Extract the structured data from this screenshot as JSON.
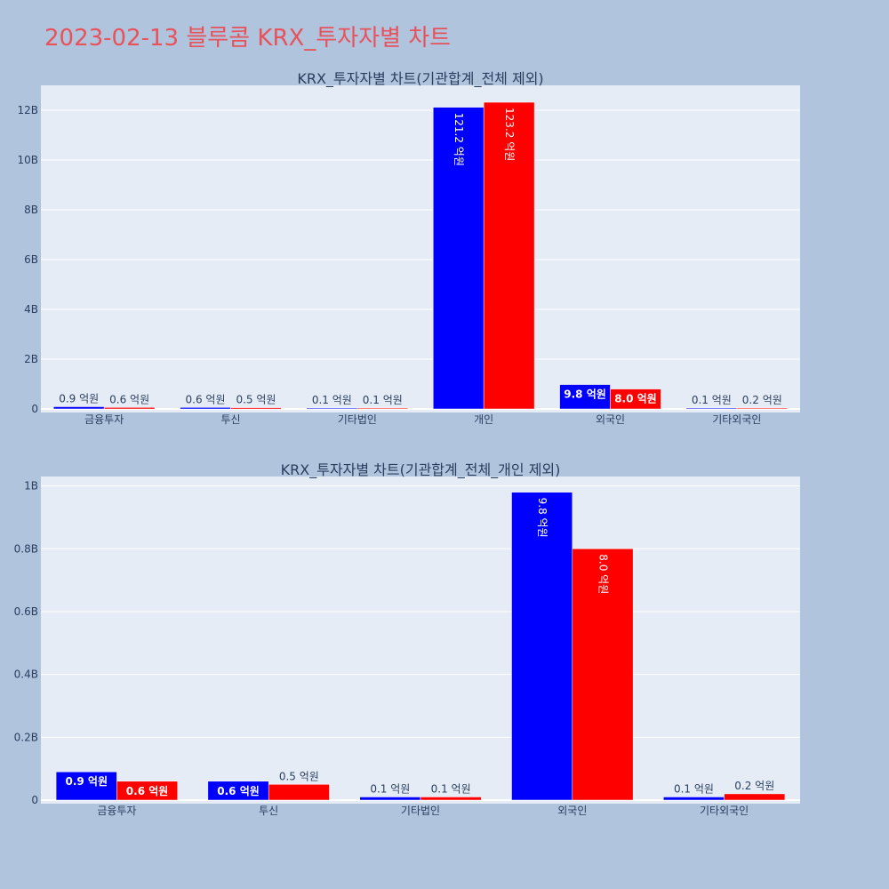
{
  "page_title": "2023-02-13 블루콤 KRX_투자자별 차트",
  "colors": {
    "buy": "#0000ff",
    "sell": "#ff0000",
    "plot_bg": "#e5ecf6",
    "page_bg": "#b0c4de",
    "title": "#e8525a"
  },
  "chart_data": [
    {
      "type": "bar",
      "title": "KRX_투자자별 차트(기관합계_전체 제외)",
      "categories": [
        "금융투자",
        "투신",
        "기타법인",
        "개인",
        "외국인",
        "기타외국인"
      ],
      "series": [
        {
          "color": "#0000ff",
          "values": [
            90000000,
            60000000,
            10000000,
            12120000000,
            980000000,
            10000000
          ],
          "labels": [
            "0.9 억원",
            "0.6 억원",
            "0.1 억원",
            "121.2 억원",
            "9.8 억원",
            "0.1 억원"
          ]
        },
        {
          "color": "#ff0000",
          "values": [
            60000000,
            50000000,
            10000000,
            12320000000,
            800000000,
            20000000
          ],
          "labels": [
            "0.6 억원",
            "0.5 억원",
            "0.1 억원",
            "123.2 억원",
            "8.0 억원",
            "0.2 억원"
          ]
        }
      ],
      "ylim": [
        0,
        13000000000
      ],
      "yticks": [
        0,
        2000000000,
        4000000000,
        6000000000,
        8000000000,
        10000000000,
        12000000000
      ],
      "ytick_labels": [
        "0",
        "2B",
        "4B",
        "6B",
        "8B",
        "10B",
        "12B"
      ],
      "grid": true
    },
    {
      "type": "bar",
      "title": "KRX_투자자별 차트(기관합계_전체_개인 제외)",
      "categories": [
        "금융투자",
        "투신",
        "기타법인",
        "외국인",
        "기타외국인"
      ],
      "series": [
        {
          "color": "#0000ff",
          "values": [
            90000000,
            60000000,
            10000000,
            980000000,
            10000000
          ],
          "labels": [
            "0.9 억원",
            "0.6 억원",
            "0.1 억원",
            "9.8 억원",
            "0.1 억원"
          ]
        },
        {
          "color": "#ff0000",
          "values": [
            60000000,
            50000000,
            10000000,
            800000000,
            20000000
          ],
          "labels": [
            "0.6 억원",
            "0.5 억원",
            "0.1 억원",
            "8.0 억원",
            "0.2 억원"
          ]
        }
      ],
      "ylim": [
        0,
        1030000000
      ],
      "yticks": [
        0,
        200000000,
        400000000,
        600000000,
        800000000,
        1000000000
      ],
      "ytick_labels": [
        "0",
        "0.2B",
        "0.4B",
        "0.6B",
        "0.8B",
        "1B"
      ],
      "grid": true
    }
  ]
}
